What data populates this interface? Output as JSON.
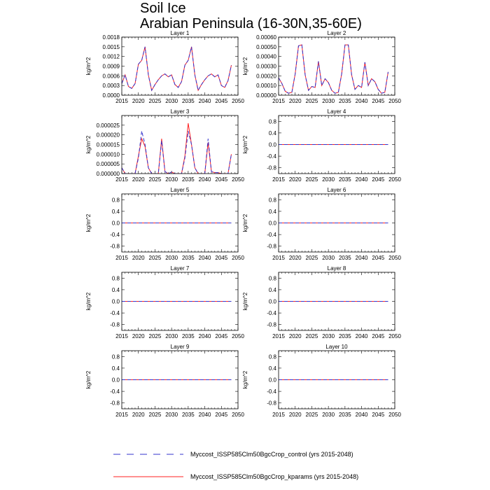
{
  "figure": {
    "title": "Soil Ice",
    "subtitle": "Arabian Peninsula (16-30N,35-60E)"
  },
  "series_styles": [
    {
      "key": "control",
      "color": "#3333cc",
      "dash": "dashed"
    },
    {
      "key": "kparams",
      "color": "#ff2020",
      "dash": "solid"
    }
  ],
  "legend": [
    "Myccost_ISSP585Clm50BgcCrop_control (yrs 2015-2048)",
    "Myccost_ISSP585Clm50BgcCrop_kparams (yrs 2015-2048)"
  ],
  "chart_data": [
    {
      "type": "line",
      "title": "Layer 1",
      "ylabel": "kg/m^2",
      "xlim": [
        2015,
        2050
      ],
      "xticks": [
        2015,
        2020,
        2025,
        2030,
        2035,
        2040,
        2045,
        2050
      ],
      "ylim": [
        0,
        0.0018
      ],
      "yticks": [
        0,
        0.0003,
        0.0006,
        0.0009,
        0.0012,
        0.0015,
        0.0018
      ],
      "ytick_labels": [
        "0.0000",
        "0.0003",
        "0.0006",
        "0.0009",
        "0.0012",
        "0.0015",
        "0.0018"
      ],
      "x": [
        2015,
        2016,
        2017,
        2018,
        2019,
        2020,
        2021,
        2022,
        2023,
        2024,
        2025,
        2026,
        2027,
        2028,
        2029,
        2030,
        2031,
        2032,
        2033,
        2034,
        2035,
        2036,
        2037,
        2038,
        2039,
        2040,
        2041,
        2042,
        2043,
        2044,
        2045,
        2046,
        2047,
        2048
      ],
      "series": [
        {
          "name": "Myccost_ISSP585Clm50BgcCrop_control (yrs 2015-2048)",
          "values": [
            0.00036,
            0.00063,
            0.00027,
            0.00021,
            0.00036,
            0.00096,
            0.00108,
            0.0015,
            0.00063,
            0.00015,
            0.00033,
            0.00048,
            0.0006,
            0.00066,
            0.00057,
            0.00063,
            0.00033,
            0.00024,
            0.00042,
            0.00093,
            0.00108,
            0.0015,
            0.00063,
            0.00015,
            0.00033,
            0.00048,
            0.0006,
            0.00066,
            0.00057,
            0.00063,
            0.0003,
            0.00024,
            0.00045,
            0.00093
          ]
        },
        {
          "name": "Myccost_ISSP585Clm50BgcCrop_kparams (yrs 2015-2048)",
          "values": [
            0.00036,
            0.00063,
            0.00027,
            0.00021,
            0.00036,
            0.00096,
            0.00108,
            0.0015,
            0.00063,
            0.00015,
            0.00033,
            0.00048,
            0.0006,
            0.00066,
            0.00057,
            0.00063,
            0.00033,
            0.00024,
            0.00042,
            0.00093,
            0.00108,
            0.0015,
            0.00063,
            0.00015,
            0.00033,
            0.00048,
            0.0006,
            0.00066,
            0.00057,
            0.00063,
            0.0003,
            0.00024,
            0.00045,
            0.00093
          ]
        }
      ]
    },
    {
      "type": "line",
      "title": "Layer 2",
      "ylabel": "kg/m^2",
      "xlim": [
        2015,
        2050
      ],
      "xticks": [
        2015,
        2020,
        2025,
        2030,
        2035,
        2040,
        2045,
        2050
      ],
      "ylim": [
        0,
        0.0006
      ],
      "yticks": [
        0,
        0.0001,
        0.0002,
        0.0003,
        0.0004,
        0.0005,
        0.0006
      ],
      "ytick_labels": [
        "0.00000",
        "0.00010",
        "0.00020",
        "0.00030",
        "0.00040",
        "0.00050",
        "0.00060"
      ],
      "x": [
        2015,
        2016,
        2017,
        2018,
        2019,
        2020,
        2021,
        2022,
        2023,
        2024,
        2025,
        2026,
        2027,
        2028,
        2029,
        2030,
        2031,
        2032,
        2033,
        2034,
        2035,
        2036,
        2037,
        2038,
        2039,
        2040,
        2041,
        2042,
        2043,
        2044,
        2045,
        2046,
        2047,
        2048
      ],
      "series": [
        {
          "name": "Myccost_ISSP585Clm50BgcCrop_control (yrs 2015-2048)",
          "values": [
            0.00018,
            0.00012,
            4e-05,
            2e-05,
            3e-05,
            0.00022,
            0.00051,
            0.00052,
            0.00021,
            5e-05,
            9e-05,
            8e-05,
            0.00035,
            0.0001,
            0.00017,
            0.00013,
            5e-05,
            2e-05,
            3e-05,
            0.00022,
            0.00052,
            0.00052,
            0.00021,
            6e-05,
            0.0001,
            8e-05,
            0.00034,
            0.0001,
            0.00017,
            0.00014,
            6e-05,
            2e-05,
            3e-05,
            0.00024
          ]
        },
        {
          "name": "Myccost_ISSP585Clm50BgcCrop_kparams (yrs 2015-2048)",
          "values": [
            0.00018,
            0.00012,
            4e-05,
            2e-05,
            3e-05,
            0.00022,
            0.00051,
            0.00052,
            0.00021,
            5e-05,
            9e-05,
            8e-05,
            0.00035,
            0.0001,
            0.00017,
            0.00013,
            5e-05,
            2e-05,
            3e-05,
            0.00022,
            0.00052,
            0.00052,
            0.00021,
            6e-05,
            0.0001,
            8e-05,
            0.00034,
            0.0001,
            0.00017,
            0.00014,
            6e-05,
            2e-05,
            3e-05,
            0.00024
          ]
        }
      ]
    },
    {
      "type": "line",
      "title": "Layer 3",
      "ylabel": "kg/m^2",
      "xlim": [
        2015,
        2050
      ],
      "xticks": [
        2015,
        2020,
        2025,
        2030,
        2035,
        2040,
        2045,
        2050
      ],
      "ylim": [
        0,
        3e-05
      ],
      "yticks": [
        0,
        5e-06,
        1e-05,
        1.5e-05,
        2e-05,
        2.5e-05
      ],
      "ytick_labels": [
        "0.000000",
        "0.000005",
        "0.000010",
        "0.000015",
        "0.000020",
        "0.000025"
      ],
      "x": [
        2015,
        2016,
        2017,
        2018,
        2019,
        2020,
        2021,
        2022,
        2023,
        2024,
        2025,
        2026,
        2027,
        2028,
        2029,
        2030,
        2031,
        2032,
        2033,
        2034,
        2035,
        2036,
        2037,
        2038,
        2039,
        2040,
        2041,
        2042,
        2043,
        2044,
        2045,
        2046,
        2047,
        2048
      ],
      "series": [
        {
          "name": "Myccost_ISSP585Clm50BgcCrop_control (yrs 2015-2048)",
          "values": [
            3e-06,
            0,
            0,
            0,
            0,
            8e-06,
            2.2e-05,
            1.5e-05,
            3e-06,
            0,
            0,
            0,
            1.7e-05,
            1e-06,
            0,
            8e-07,
            0,
            0,
            0,
            8e-06,
            2.2e-05,
            1.5e-05,
            3e-06,
            0,
            0,
            0,
            1.8e-05,
            1e-06,
            5e-07,
            5e-07,
            0,
            0,
            0,
            1e-05
          ]
        },
        {
          "name": "Myccost_ISSP585Clm50BgcCrop_kparams (yrs 2015-2048)",
          "values": [
            3e-06,
            0,
            0,
            0,
            0,
            9e-06,
            1.8e-05,
            1.4e-05,
            3e-06,
            0,
            0,
            0,
            1.8e-05,
            1e-06,
            0,
            8e-07,
            0,
            0,
            0,
            9e-06,
            2.6e-05,
            1.5e-05,
            3e-06,
            0,
            0,
            0,
            1.6e-05,
            1e-06,
            5e-07,
            5e-07,
            0,
            0,
            0,
            1e-05
          ]
        }
      ]
    },
    {
      "type": "line",
      "title": "Layer 4",
      "ylabel": "kg/m^2",
      "xlim": [
        2015,
        2050
      ],
      "xticks": [
        2015,
        2020,
        2025,
        2030,
        2035,
        2040,
        2045,
        2050
      ],
      "ylim": [
        -1,
        1
      ],
      "yticks": [
        -0.8,
        -0.4,
        0,
        0.4,
        0.8
      ],
      "ytick_labels": [
        "-0.8",
        "-0.4",
        "0.0",
        "0.4",
        "0.8"
      ],
      "x": [
        2015,
        2048
      ],
      "series": [
        {
          "name": "Myccost_ISSP585Clm50BgcCrop_control (yrs 2015-2048)",
          "values": [
            0,
            0
          ]
        },
        {
          "name": "Myccost_ISSP585Clm50BgcCrop_kparams (yrs 2015-2048)",
          "values": [
            0,
            0
          ]
        }
      ]
    },
    {
      "type": "line",
      "title": "Layer 5",
      "ylabel": "kg/m^2",
      "xlim": [
        2015,
        2050
      ],
      "xticks": [
        2015,
        2020,
        2025,
        2030,
        2035,
        2040,
        2045,
        2050
      ],
      "ylim": [
        -1,
        1
      ],
      "yticks": [
        -0.8,
        -0.4,
        0,
        0.4,
        0.8
      ],
      "ytick_labels": [
        "-0.8",
        "-0.4",
        "0.0",
        "0.4",
        "0.8"
      ],
      "x": [
        2015,
        2048
      ],
      "series": [
        {
          "name": "Myccost_ISSP585Clm50BgcCrop_control (yrs 2015-2048)",
          "values": [
            0,
            0
          ]
        },
        {
          "name": "Myccost_ISSP585Clm50BgcCrop_kparams (yrs 2015-2048)",
          "values": [
            0,
            0
          ]
        }
      ]
    },
    {
      "type": "line",
      "title": "Layer 6",
      "ylabel": "kg/m^2",
      "xlim": [
        2015,
        2050
      ],
      "xticks": [
        2015,
        2020,
        2025,
        2030,
        2035,
        2040,
        2045,
        2050
      ],
      "ylim": [
        -1,
        1
      ],
      "yticks": [
        -0.8,
        -0.4,
        0,
        0.4,
        0.8
      ],
      "ytick_labels": [
        "-0.8",
        "-0.4",
        "0.0",
        "0.4",
        "0.8"
      ],
      "x": [
        2015,
        2048
      ],
      "series": [
        {
          "name": "Myccost_ISSP585Clm50BgcCrop_control (yrs 2015-2048)",
          "values": [
            0,
            0
          ]
        },
        {
          "name": "Myccost_ISSP585Clm50BgcCrop_kparams (yrs 2015-2048)",
          "values": [
            0,
            0
          ]
        }
      ]
    },
    {
      "type": "line",
      "title": "Layer 7",
      "ylabel": "kg/m^2",
      "xlim": [
        2015,
        2050
      ],
      "xticks": [
        2015,
        2020,
        2025,
        2030,
        2035,
        2040,
        2045,
        2050
      ],
      "ylim": [
        -1,
        1
      ],
      "yticks": [
        -0.8,
        -0.4,
        0,
        0.4,
        0.8
      ],
      "ytick_labels": [
        "-0.8",
        "-0.4",
        "0.0",
        "0.4",
        "0.8"
      ],
      "x": [
        2015,
        2048
      ],
      "series": [
        {
          "name": "Myccost_ISSP585Clm50BgcCrop_control (yrs 2015-2048)",
          "values": [
            0,
            0
          ]
        },
        {
          "name": "Myccost_ISSP585Clm50BgcCrop_kparams (yrs 2015-2048)",
          "values": [
            0,
            0
          ]
        }
      ]
    },
    {
      "type": "line",
      "title": "Layer 8",
      "ylabel": "kg/m^2",
      "xlim": [
        2015,
        2050
      ],
      "xticks": [
        2015,
        2020,
        2025,
        2030,
        2035,
        2040,
        2045,
        2050
      ],
      "ylim": [
        -1,
        1
      ],
      "yticks": [
        -0.8,
        -0.4,
        0,
        0.4,
        0.8
      ],
      "ytick_labels": [
        "-0.8",
        "-0.4",
        "0.0",
        "0.4",
        "0.8"
      ],
      "x": [
        2015,
        2048
      ],
      "series": [
        {
          "name": "Myccost_ISSP585Clm50BgcCrop_control (yrs 2015-2048)",
          "values": [
            0,
            0
          ]
        },
        {
          "name": "Myccost_ISSP585Clm50BgcCrop_kparams (yrs 2015-2048)",
          "values": [
            0,
            0
          ]
        }
      ]
    },
    {
      "type": "line",
      "title": "Layer 9",
      "ylabel": "kg/m^2",
      "xlim": [
        2015,
        2050
      ],
      "xticks": [
        2015,
        2020,
        2025,
        2030,
        2035,
        2040,
        2045,
        2050
      ],
      "ylim": [
        -1,
        1
      ],
      "yticks": [
        -0.8,
        -0.4,
        0,
        0.4,
        0.8
      ],
      "ytick_labels": [
        "-0.8",
        "-0.4",
        "0.0",
        "0.4",
        "0.8"
      ],
      "x": [
        2015,
        2048
      ],
      "series": [
        {
          "name": "Myccost_ISSP585Clm50BgcCrop_control (yrs 2015-2048)",
          "values": [
            0,
            0
          ]
        },
        {
          "name": "Myccost_ISSP585Clm50BgcCrop_kparams (yrs 2015-2048)",
          "values": [
            0,
            0
          ]
        }
      ]
    },
    {
      "type": "line",
      "title": "Layer 10",
      "ylabel": "kg/m^2",
      "xlim": [
        2015,
        2050
      ],
      "xticks": [
        2015,
        2020,
        2025,
        2030,
        2035,
        2040,
        2045,
        2050
      ],
      "ylim": [
        -1,
        1
      ],
      "yticks": [
        -0.8,
        -0.4,
        0,
        0.4,
        0.8
      ],
      "ytick_labels": [
        "-0.8",
        "-0.4",
        "0.0",
        "0.4",
        "0.8"
      ],
      "x": [
        2015,
        2048
      ],
      "series": [
        {
          "name": "Myccost_ISSP585Clm50BgcCrop_control (yrs 2015-2048)",
          "values": [
            0,
            0
          ]
        },
        {
          "name": "Myccost_ISSP585Clm50BgcCrop_kparams (yrs 2015-2048)",
          "values": [
            0,
            0
          ]
        }
      ]
    }
  ]
}
